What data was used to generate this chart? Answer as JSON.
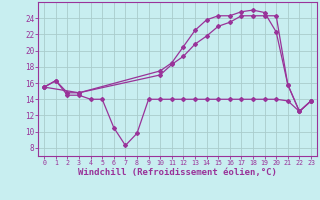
{
  "background_color": "#c8eef0",
  "grid_color": "#aacccc",
  "line_color": "#993399",
  "xlabel": "Windchill (Refroidissement éolien,°C)",
  "xlabel_fontsize": 6.5,
  "xlim": [
    -0.5,
    23.5
  ],
  "ylim": [
    7,
    26
  ],
  "yticks": [
    8,
    10,
    12,
    14,
    16,
    18,
    20,
    22,
    24
  ],
  "xticks": [
    0,
    1,
    2,
    3,
    4,
    5,
    6,
    7,
    8,
    9,
    10,
    11,
    12,
    13,
    14,
    15,
    16,
    17,
    18,
    19,
    20,
    21,
    22,
    23
  ],
  "line1_x": [
    0,
    1,
    2,
    3,
    4,
    5,
    6,
    7,
    8,
    9,
    10,
    11,
    12,
    13,
    14,
    15,
    16,
    17,
    18,
    19,
    20,
    21,
    22,
    23
  ],
  "line1_y": [
    15.5,
    16.3,
    14.5,
    14.5,
    14.0,
    14.0,
    10.5,
    8.3,
    9.8,
    14.0,
    14.0,
    14.0,
    14.0,
    14.0,
    14.0,
    14.0,
    14.0,
    14.0,
    14.0,
    14.0,
    14.0,
    13.8,
    12.5,
    13.8
  ],
  "line2_x": [
    0,
    1,
    2,
    3,
    10,
    11,
    12,
    13,
    14,
    15,
    16,
    17,
    18,
    19,
    20,
    21,
    22,
    23
  ],
  "line2_y": [
    15.5,
    16.3,
    14.8,
    14.8,
    17.5,
    18.5,
    20.5,
    22.5,
    23.8,
    24.3,
    24.3,
    24.8,
    25.0,
    24.7,
    22.3,
    15.8,
    12.5,
    13.8
  ],
  "line3_x": [
    0,
    3,
    10,
    11,
    12,
    13,
    14,
    15,
    16,
    17,
    18,
    19,
    20,
    21,
    22,
    23
  ],
  "line3_y": [
    15.5,
    14.8,
    17.0,
    18.3,
    19.3,
    20.8,
    21.8,
    23.0,
    23.5,
    24.3,
    24.3,
    24.3,
    24.3,
    15.8,
    12.5,
    13.8
  ]
}
